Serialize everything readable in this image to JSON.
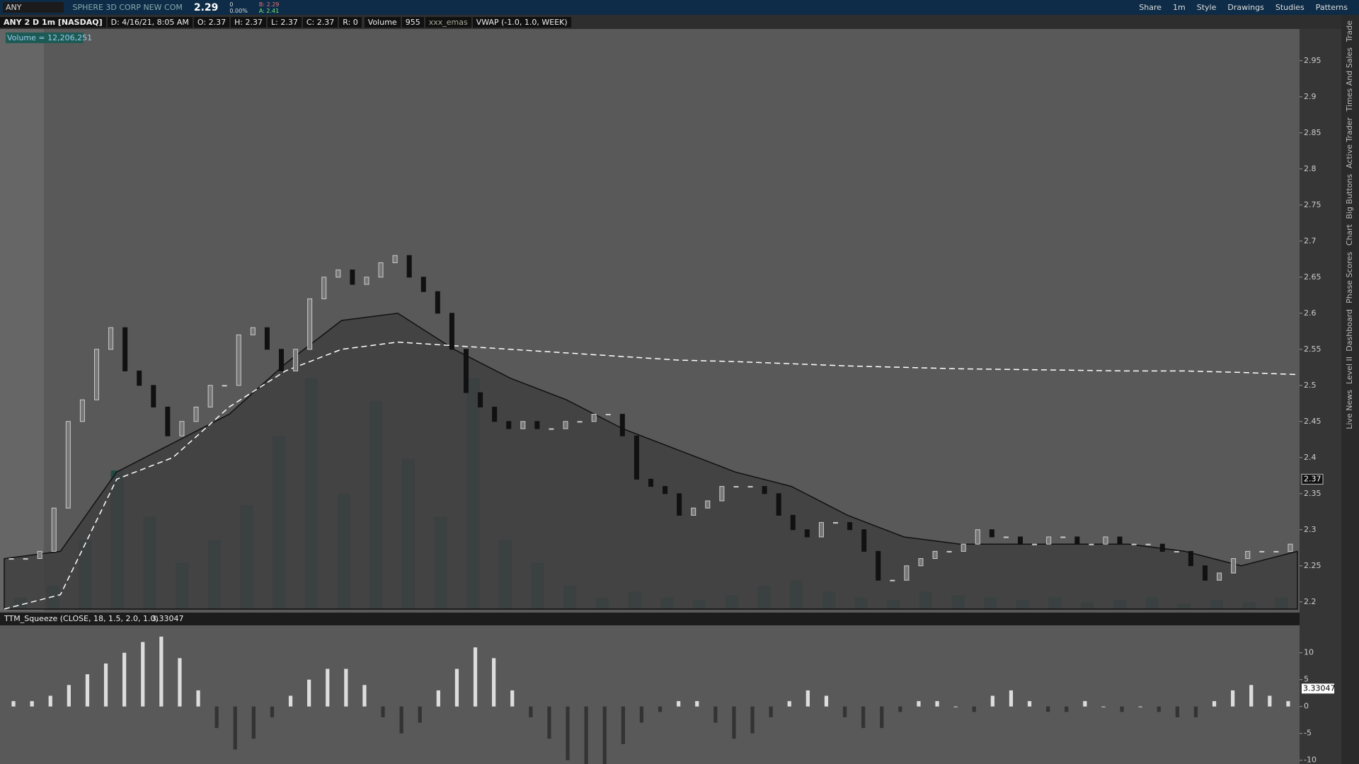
{
  "toolbar": {
    "symbol": "ANY",
    "company": "SPHERE 3D CORP NEW COM",
    "last": "2.29",
    "change": "0",
    "change_pct": "0.00%",
    "bid": "B: 2.29",
    "ask": "A: 2.41",
    "buttons": [
      "Share",
      "1m",
      "Style",
      "Drawings",
      "Studies",
      "Patterns"
    ]
  },
  "info_bar": {
    "chart_name": "ANY 2 D 1m [NASDAQ]",
    "fields": [
      "D: 4/16/21, 8:05 AM",
      "O: 2.37",
      "H: 2.37",
      "L: 2.37",
      "C: 2.37",
      "R: 0"
    ],
    "volume_label": "Volume",
    "volume_value": "955",
    "study1": "xxx_emas",
    "study2": "VWAP (-1.0, 1.0, WEEK)",
    "volume_badge": "Volume = 12,206,251"
  },
  "side_tabs": [
    "Trade",
    "Times And Sales",
    "Active Trader",
    "Big Buttons",
    "Chart",
    "Phase Scores",
    "Dashboard",
    "Level II",
    "Live News"
  ],
  "chart_data": [
    {
      "type": "candlestick",
      "ylim": [
        2.19,
        2.99
      ],
      "yticks": [
        2.2,
        2.25,
        2.3,
        2.35,
        2.4,
        2.45,
        2.5,
        2.55,
        2.6,
        2.65,
        2.7,
        2.75,
        2.8,
        2.85,
        2.9,
        2.95
      ],
      "last_price": 2.37,
      "values": [
        2.26,
        2.26,
        2.27,
        2.33,
        2.45,
        2.48,
        2.55,
        2.58,
        2.52,
        2.5,
        2.47,
        2.43,
        2.45,
        2.47,
        2.5,
        2.5,
        2.57,
        2.58,
        2.55,
        2.52,
        2.55,
        2.62,
        2.65,
        2.66,
        2.64,
        2.65,
        2.67,
        2.68,
        2.65,
        2.63,
        2.6,
        2.55,
        2.49,
        2.47,
        2.45,
        2.44,
        2.45,
        2.44,
        2.44,
        2.45,
        2.45,
        2.46,
        2.46,
        2.43,
        2.37,
        2.36,
        2.35,
        2.32,
        2.33,
        2.34,
        2.36,
        2.36,
        2.36,
        2.35,
        2.32,
        2.3,
        2.29,
        2.31,
        2.31,
        2.3,
        2.27,
        2.23,
        2.23,
        2.25,
        2.26,
        2.27,
        2.27,
        2.28,
        2.3,
        2.29,
        2.29,
        2.28,
        2.28,
        2.29,
        2.29,
        2.28,
        2.28,
        2.29,
        2.28,
        2.28,
        2.28,
        2.27,
        2.27,
        2.25,
        2.23,
        2.24,
        2.26,
        2.27,
        2.27,
        2.27,
        2.28
      ],
      "ema": {
        "color": "#3f3f3f",
        "values": [
          2.26,
          2.27,
          2.38,
          2.42,
          2.46,
          2.53,
          2.59,
          2.6,
          2.55,
          2.51,
          2.48,
          2.44,
          2.41,
          2.38,
          2.36,
          2.32,
          2.29,
          2.28,
          2.28,
          2.28,
          2.28,
          2.27,
          2.25,
          2.27
        ]
      },
      "vwap": {
        "color": "#ffffff",
        "values": [
          2.19,
          2.21,
          2.37,
          2.4,
          2.47,
          2.52,
          2.55,
          2.56,
          2.555,
          2.55,
          2.545,
          2.54,
          2.535,
          2.533,
          2.53,
          2.527,
          2.525,
          2.523,
          2.522,
          2.521,
          2.52,
          2.52,
          2.518,
          2.515
        ]
      },
      "volume": {
        "color": "#1f4a43",
        "lim": [
          0,
          500000
        ],
        "values": [
          10000,
          20000,
          60000,
          120000,
          80000,
          40000,
          60000,
          90000,
          150000,
          200000,
          100000,
          180000,
          130000,
          80000,
          200000,
          60000,
          40000,
          20000,
          10000,
          15000,
          10000,
          8000,
          12000,
          20000,
          25000,
          15000,
          10000,
          8000,
          15000,
          12000,
          10000,
          8000,
          10000,
          6000,
          8000,
          10000,
          5000,
          8000,
          6000,
          10000
        ]
      }
    },
    {
      "type": "bar",
      "title": "TTM_Squeeze (CLOSE, 18, 1.5, 2.0, 1.0)",
      "current_value": 3.33047,
      "ylim": [
        -10.7,
        15.1
      ],
      "yticks": [
        -10,
        -5,
        0,
        5,
        10
      ],
      "values": [
        1,
        1,
        2,
        4,
        6,
        8,
        10,
        12,
        13,
        9,
        3,
        -4,
        -8,
        -6,
        -2,
        2,
        5,
        7,
        7,
        4,
        -2,
        -5,
        -3,
        3,
        7,
        11,
        9,
        3,
        -2,
        -6,
        -10,
        -12,
        -11,
        -7,
        -3,
        -1,
        1,
        1,
        -3,
        -6,
        -5,
        -2,
        1,
        3,
        2,
        -2,
        -4,
        -4,
        -1,
        1,
        1,
        0,
        -1,
        2,
        3,
        1,
        -1,
        -1,
        1,
        0,
        -1,
        0,
        -1,
        -2,
        -2,
        1,
        3,
        4,
        2,
        1
      ]
    }
  ]
}
